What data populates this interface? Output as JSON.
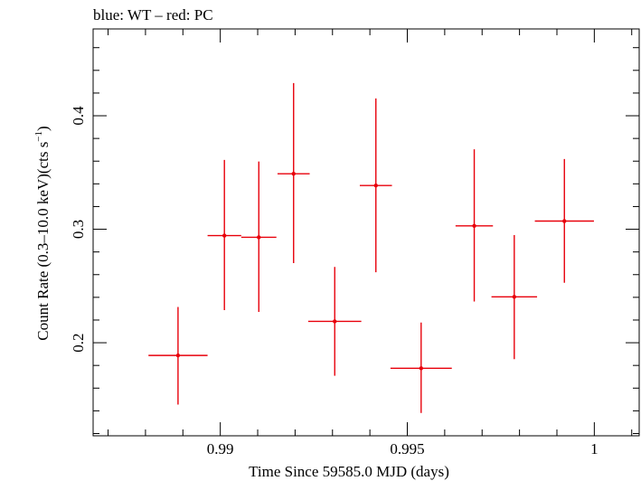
{
  "chart_data": {
    "type": "scatter",
    "title": "blue: WT – red: PC",
    "xlabel": "Time Since 59585.0 MJD (days)",
    "ylabel_main": "Count Rate (0.3–10.0 keV)(cts s",
    "ylabel_sup": "−1",
    "ylabel_close": ")",
    "xlim": [
      0.9866,
      1.0012
    ],
    "ylim": [
      0.118,
      0.4765
    ],
    "xticks_major": [
      0.99,
      0.995,
      1.0
    ],
    "xtick_labels": [
      "0.99",
      "0.995",
      "1"
    ],
    "yticks_major": [
      0.2,
      0.3,
      0.4
    ],
    "ytick_labels": [
      "0.2",
      "0.3",
      "0.4"
    ],
    "grid": false,
    "series": [
      {
        "color": "#e8000b",
        "points": [
          {
            "x": 0.98887,
            "y": 0.1888,
            "xerr": 0.00079,
            "yerr_lo": 0.0433,
            "yerr_hi": 0.0427
          },
          {
            "x": 0.99011,
            "y": 0.2944,
            "xerr": 0.00045,
            "yerr_lo": 0.0657,
            "yerr_hi": 0.0667
          },
          {
            "x": 0.99103,
            "y": 0.2929,
            "xerr": 0.00047,
            "yerr_lo": 0.0658,
            "yerr_hi": 0.0668
          },
          {
            "x": 0.99196,
            "y": 0.3489,
            "xerr": 0.00043,
            "yerr_lo": 0.0787,
            "yerr_hi": 0.0799
          },
          {
            "x": 0.99306,
            "y": 0.2188,
            "xerr": 0.00071,
            "yerr_lo": 0.0479,
            "yerr_hi": 0.048
          },
          {
            "x": 0.99416,
            "y": 0.3385,
            "xerr": 0.00043,
            "yerr_lo": 0.0764,
            "yerr_hi": 0.0768
          },
          {
            "x": 0.99537,
            "y": 0.1775,
            "xerr": 0.00082,
            "yerr_lo": 0.0394,
            "yerr_hi": 0.0403
          },
          {
            "x": 0.99679,
            "y": 0.303,
            "xerr": 0.0005,
            "yerr_lo": 0.0667,
            "yerr_hi": 0.0674
          },
          {
            "x": 0.99786,
            "y": 0.2404,
            "xerr": 0.00061,
            "yerr_lo": 0.0549,
            "yerr_hi": 0.0545
          },
          {
            "x": 0.9992,
            "y": 0.3072,
            "xerr": 0.00079,
            "yerr_lo": 0.0544,
            "yerr_hi": 0.0547
          }
        ]
      }
    ]
  }
}
